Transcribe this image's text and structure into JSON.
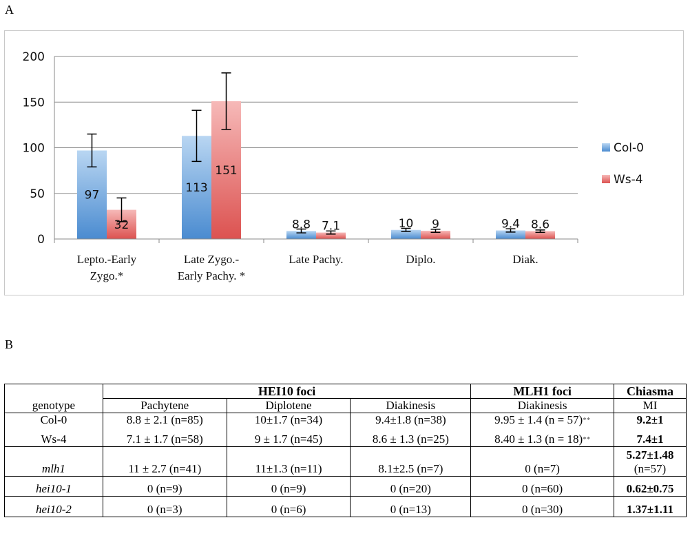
{
  "panel_a_label": "A",
  "panel_b_label": "B",
  "chart_data": {
    "type": "bar",
    "categories": [
      [
        "Lepto.-Early",
        "Zygo.*"
      ],
      [
        "Late Zygo.-",
        "Early Pachy. *"
      ],
      [
        "Late Pachy."
      ],
      [
        "Diplo."
      ],
      [
        "Diak."
      ]
    ],
    "series": [
      {
        "name": "Col-0",
        "values": [
          97,
          113,
          8.8,
          10,
          9.4
        ],
        "error_low": [
          79,
          85,
          6.7,
          8.3,
          7.6
        ],
        "error_high": [
          115,
          141,
          10.9,
          11.7,
          11.2
        ],
        "color": "#5b9bd5",
        "data_labels": [
          "97",
          "113",
          "8.8",
          "10",
          "9.4"
        ]
      },
      {
        "name": "Ws-4",
        "values": [
          32,
          151,
          7.1,
          9,
          8.6
        ],
        "error_low": [
          19,
          120,
          5.4,
          7.3,
          7.3
        ],
        "error_high": [
          45,
          182,
          8.8,
          10.7,
          9.9
        ],
        "color": "#e46c6a",
        "data_labels": [
          "32",
          "151",
          "7.1",
          "9",
          "8.6"
        ]
      }
    ],
    "ylim": [
      0,
      200
    ],
    "yticks": [
      "0",
      "50",
      "100",
      "150",
      "200"
    ],
    "ytick_values": [
      0,
      50,
      100,
      150,
      200
    ],
    "grid": true,
    "legend_position": "right"
  },
  "table": {
    "groups": {
      "genotype": "genotype",
      "hei10": "HEI10 foci",
      "mlh1": "MLH1 foci",
      "chiasma": "Chiasma"
    },
    "subheaders": {
      "pachytene": "Pachytene",
      "diplotene": "Diplotene",
      "diakinesis": "Diakinesis",
      "mlh1_diakinesis": "Diakinesis",
      "mi": "MI"
    },
    "rows": {
      "col0": {
        "genotype": "Col-0",
        "pachytene": "8.8 ± 2.1 (n=85)",
        "diplotene": "10±1.7 (n=34)",
        "diakinesis": "9.4±1.8 (n=38)",
        "mlh1": "9.95 ± 1.4 (n = 57)",
        "mlh1_mark": "**",
        "mi": "9.2±1"
      },
      "ws4": {
        "genotype": "Ws-4",
        "pachytene": "7.1 ± 1.7 (n=58)",
        "diplotene": "9 ± 1.7 (n=45)",
        "diakinesis": "8.6 ± 1.3 (n=25)",
        "mlh1": "8.40 ± 1.3 (n = 18)",
        "mlh1_mark": "**",
        "mi": "7.4±1"
      },
      "mlh1": {
        "genotype": "mlh1",
        "pachytene": "11 ± 2.7 (n=41)",
        "diplotene": "11±1.3 (n=11)",
        "diakinesis": "8.1±2.5 (n=7)",
        "mlh1": "0 (n=7)",
        "mi": "5.27±1.48",
        "mi_n": "(n=57)"
      },
      "hei10_1": {
        "genotype": "hei10-1",
        "pachytene": "0 (n=9)",
        "diplotene": "0 (n=9)",
        "diakinesis": "0 (n=20)",
        "mlh1": "0 (n=60)",
        "mi": "0.62±0.75"
      },
      "hei10_2": {
        "genotype": "hei10-2",
        "pachytene": "0 (n=3)",
        "diplotene": "0 (n=6)",
        "diakinesis": "0 (n=13)",
        "mlh1": "0 (n=30)",
        "mi": "1.37±1.11"
      }
    }
  }
}
